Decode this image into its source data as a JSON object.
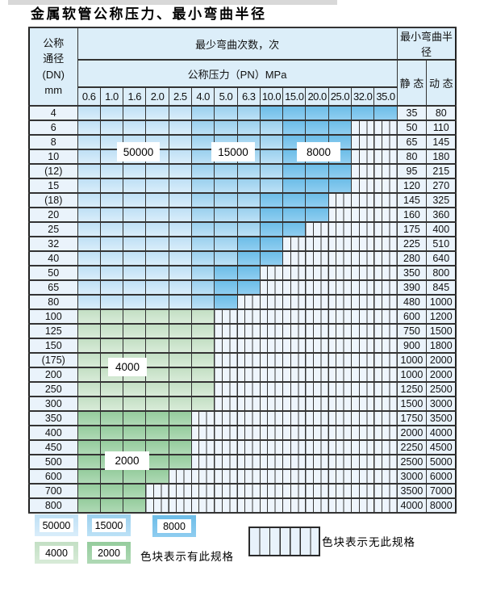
{
  "title": "金属软管公称压力、最小弯曲半径",
  "colors": {
    "light_blue_50000": "#bfe0f5",
    "medium_blue_15000": "#9bd0ee",
    "dark_blue_8000": "#6dbde8",
    "light_green_4000": "#c3dfc4",
    "dark_green_2000": "#95cc9d",
    "header_bg": "#dceef9",
    "plain_cell_bg": "#eaf3fb",
    "grid_line": "#333333"
  },
  "table": {
    "header": {
      "dn_label_lines": [
        "公称",
        "通径",
        "(DN)",
        "mm"
      ],
      "cycles_label": "最少弯曲次数，次",
      "pressure_label": "公称压力（PN）MPa",
      "radius_label": "最小弯曲半径",
      "static_label": "静 态",
      "dynamic_label": "动 态",
      "pressures": [
        "0.6",
        "1.0",
        "1.6",
        "2.0",
        "2.5",
        "4.0",
        "5.0",
        "6.3",
        "10.0",
        "15.0",
        "20.0",
        "25.0",
        "32.0",
        "35.0"
      ]
    },
    "cell_legend_codes": {
      "L": "50000次区(浅蓝)",
      "M": "15000次区(中蓝)",
      "D": "8000次区(深蓝)",
      "G": "4000次区(浅绿)",
      "E": "2000次区(深绿)",
      "S": "无此规格(竖线)"
    },
    "rows": [
      {
        "dn": "4",
        "cells": "LLLLLMMMDDDDDD",
        "static": "35",
        "dynamic": "80"
      },
      {
        "dn": "6",
        "cells": "LLLLLMMMMDDDSS",
        "static": "50",
        "dynamic": "110"
      },
      {
        "dn": "8",
        "cells": "LLLLLMMMMDDDSS",
        "static": "65",
        "dynamic": "145"
      },
      {
        "dn": "10",
        "cells": "LLLLLMMMMDDDSS",
        "static": "80",
        "dynamic": "180"
      },
      {
        "dn": "(12)",
        "cells": "LLLLLMMMMDDDSS",
        "static": "95",
        "dynamic": "215"
      },
      {
        "dn": "15",
        "cells": "LLLLLMMMMDDDSS",
        "static": "120",
        "dynamic": "270"
      },
      {
        "dn": "(18)",
        "cells": "LLLLLMMMDDDSSS",
        "static": "145",
        "dynamic": "325"
      },
      {
        "dn": "20",
        "cells": "LLLLLMMMDDDSSS",
        "static": "160",
        "dynamic": "360"
      },
      {
        "dn": "25",
        "cells": "LLLLLMMMDDSSSS",
        "static": "175",
        "dynamic": "400"
      },
      {
        "dn": "32",
        "cells": "LLLLLMMDDSSSSS",
        "static": "225",
        "dynamic": "510"
      },
      {
        "dn": "40",
        "cells": "LLLLLMMDDSSSSS",
        "static": "280",
        "dynamic": "640"
      },
      {
        "dn": "50",
        "cells": "LLLLLMDDSSSSSS",
        "static": "350",
        "dynamic": "800"
      },
      {
        "dn": "65",
        "cells": "LLLLLMDDSSSSSS",
        "static": "390",
        "dynamic": "845"
      },
      {
        "dn": "80",
        "cells": "LLLLLMDSSSSSSS",
        "static": "480",
        "dynamic": "1000"
      },
      {
        "dn": "100",
        "cells": "GGGGGGSSSSSSSS",
        "static": "600",
        "dynamic": "1200"
      },
      {
        "dn": "125",
        "cells": "GGGGGGSSSSSSSS",
        "static": "750",
        "dynamic": "1500"
      },
      {
        "dn": "150",
        "cells": "GGGGGGSSSSSSSS",
        "static": "900",
        "dynamic": "1800"
      },
      {
        "dn": "(175)",
        "cells": "GGGGGGSSSSSSSS",
        "static": "1000",
        "dynamic": "2000"
      },
      {
        "dn": "200",
        "cells": "GGGGGGSSSSSSSS",
        "static": "1000",
        "dynamic": "2000"
      },
      {
        "dn": "250",
        "cells": "GGGGGGSSSSSSSS",
        "static": "1250",
        "dynamic": "2500"
      },
      {
        "dn": "300",
        "cells": "GGGGGGSSSSSSSS",
        "static": "1500",
        "dynamic": "3000"
      },
      {
        "dn": "350",
        "cells": "EEEEESSSSSSSSS",
        "static": "1750",
        "dynamic": "3500"
      },
      {
        "dn": "400",
        "cells": "EEEEESSSSSSSSS",
        "static": "2000",
        "dynamic": "4000"
      },
      {
        "dn": "450",
        "cells": "EEEEESSSSSSSSS",
        "static": "2250",
        "dynamic": "4500"
      },
      {
        "dn": "500",
        "cells": "EEEEESSSSSSSSS",
        "static": "2500",
        "dynamic": "5000"
      },
      {
        "dn": "600",
        "cells": "EEEESSSSSSSSSS",
        "static": "3000",
        "dynamic": "6000"
      },
      {
        "dn": "700",
        "cells": "EEESSSSSSSSSSS",
        "static": "3500",
        "dynamic": "7000"
      },
      {
        "dn": "800",
        "cells": "EEESSSSSSSSSSS",
        "static": "4000",
        "dynamic": "8000"
      }
    ]
  },
  "overlay_labels": [
    {
      "text": "50000"
    },
    {
      "text": "15000"
    },
    {
      "text": "8000"
    },
    {
      "text": "4000"
    },
    {
      "text": "2000"
    }
  ],
  "legend": {
    "items": [
      {
        "label": "50000",
        "zone": "L"
      },
      {
        "label": "15000",
        "zone": "M"
      },
      {
        "label": "8000",
        "zone": "D"
      },
      {
        "label": "4000",
        "zone": "G"
      },
      {
        "label": "2000",
        "zone": "E"
      }
    ],
    "has_spec_text": "色块表示有此规格",
    "no_spec_text": "色块表示无此规格"
  }
}
